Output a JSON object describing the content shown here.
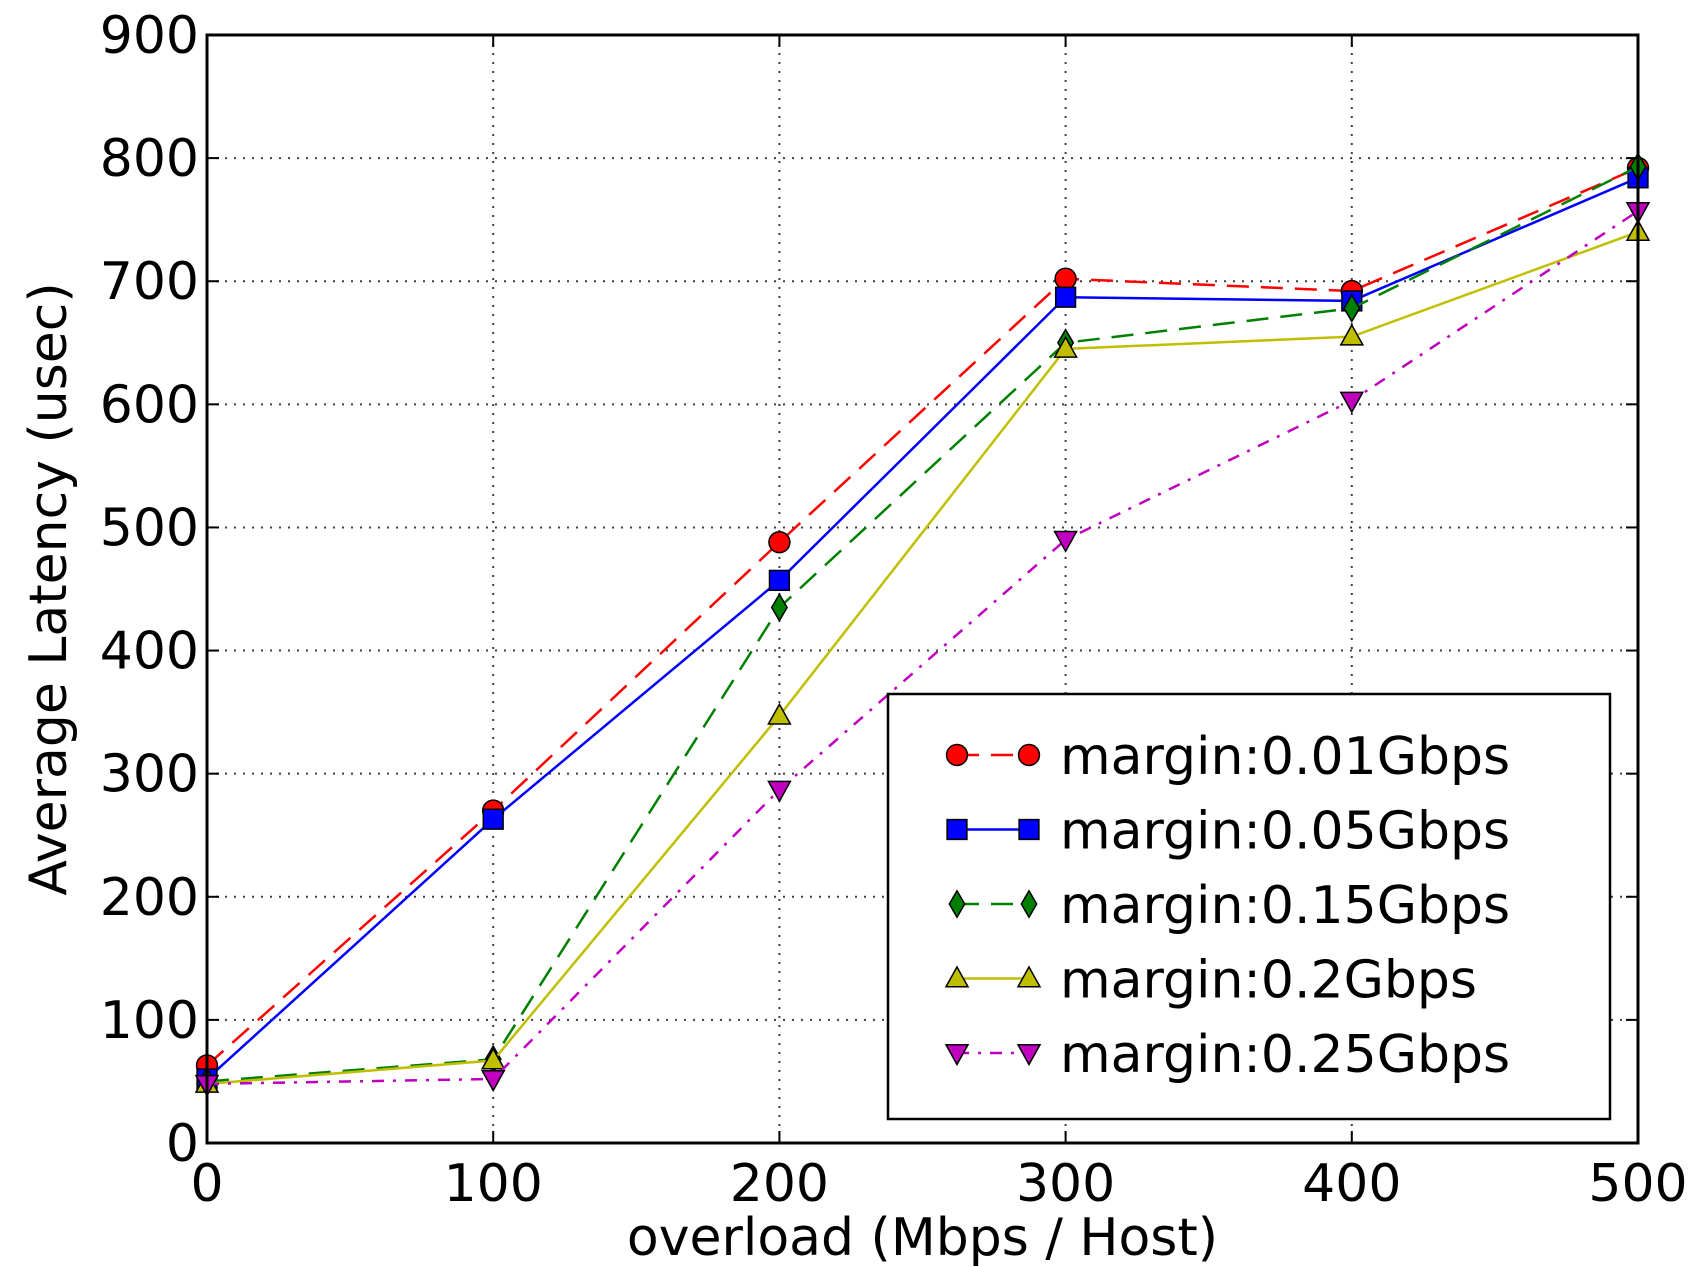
{
  "chart_data": {
    "type": "line",
    "title": "",
    "xlabel": "overload (Mbps / Host)",
    "ylabel": "Average Latency (usec)",
    "x": [
      0,
      100,
      200,
      300,
      400,
      500
    ],
    "xlim": [
      0,
      500
    ],
    "ylim": [
      0,
      900
    ],
    "xticks": [
      "0",
      "100",
      "200",
      "300",
      "400",
      "500"
    ],
    "yticks": [
      "0",
      "100",
      "200",
      "300",
      "400",
      "500",
      "600",
      "700",
      "800",
      "900"
    ],
    "grid": true,
    "legend_position": "lower-right",
    "series": [
      {
        "name": "margin:0.01Gbps",
        "values": [
          63,
          270,
          488,
          702,
          692,
          792
        ],
        "color": "#ff0000",
        "line_style": "dashed",
        "marker": "circle"
      },
      {
        "name": "margin:0.05Gbps",
        "values": [
          52,
          263,
          457,
          687,
          684,
          784
        ],
        "color": "#0000ff",
        "line_style": "solid",
        "marker": "square"
      },
      {
        "name": "margin:0.15Gbps",
        "values": [
          50,
          68,
          435,
          650,
          678,
          793
        ],
        "color": "#008000",
        "line_style": "dashed",
        "marker": "diamond"
      },
      {
        "name": "margin:0.2Gbps",
        "values": [
          48,
          67,
          347,
          645,
          655,
          740
        ],
        "color": "#bfbf00",
        "line_style": "solid",
        "marker": "triangle-up"
      },
      {
        "name": "margin:0.25Gbps",
        "values": [
          48,
          52,
          287,
          490,
          603,
          757
        ],
        "color": "#bf00bf",
        "line_style": "dashdot",
        "marker": "triangle-down"
      }
    ]
  }
}
